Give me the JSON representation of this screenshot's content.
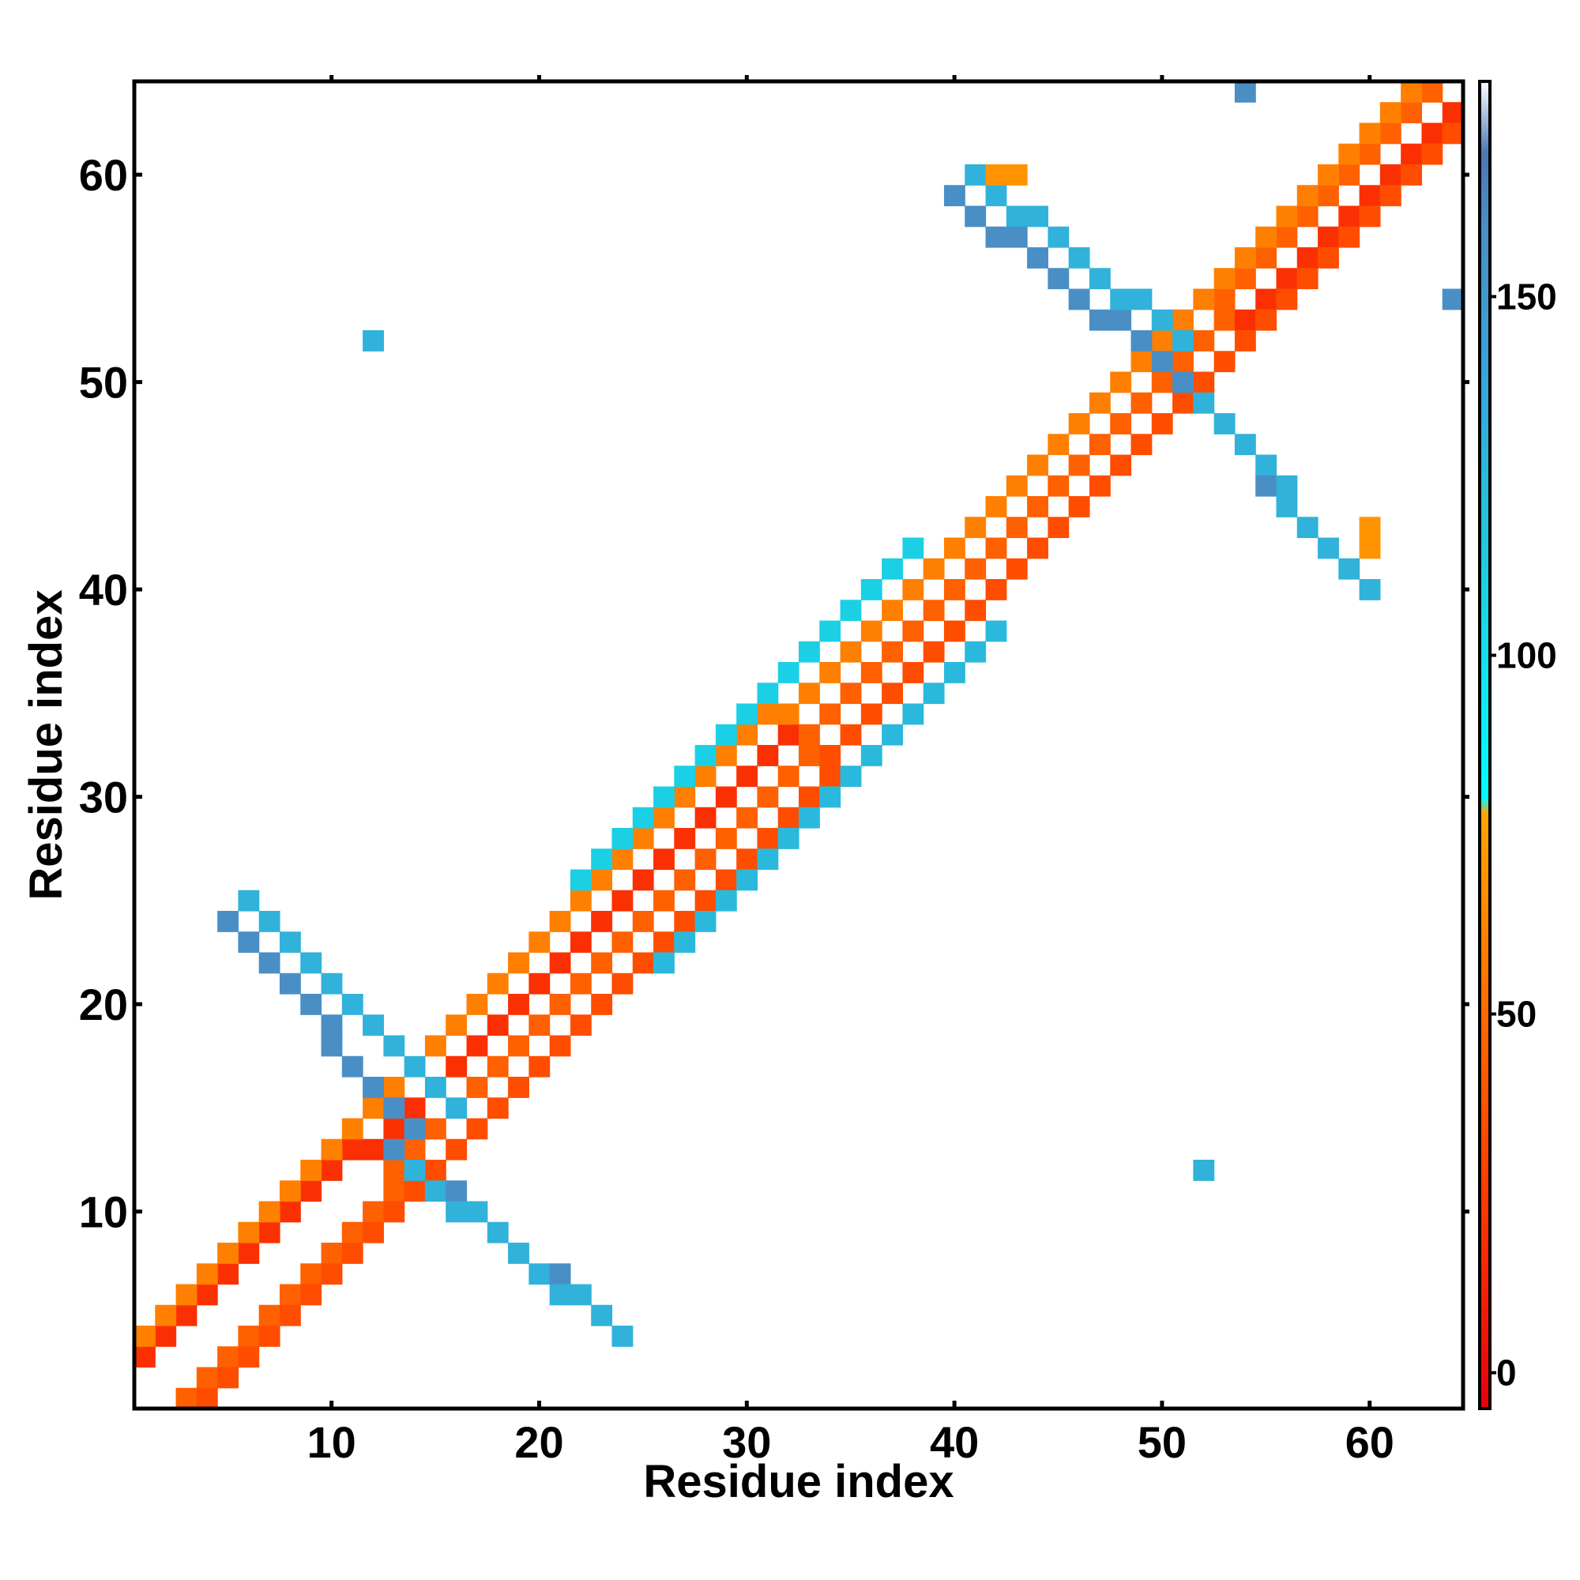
{
  "chart_data": {
    "type": "heatmap",
    "title": "",
    "xlabel": "Residue index",
    "ylabel": "Residue index",
    "xlim": [
      0.5,
      64.5
    ],
    "ylim": [
      0.5,
      64.5
    ],
    "x_ticks": [
      10,
      20,
      30,
      40,
      50,
      60
    ],
    "y_ticks": [
      10,
      20,
      30,
      40,
      50,
      60
    ],
    "x_tick_labels": [
      "10",
      "20",
      "30",
      "40",
      "50",
      "60"
    ],
    "y_tick_labels": [
      "10",
      "20",
      "30",
      "40",
      "50",
      "60"
    ],
    "grid": false,
    "colorbar": {
      "range": [
        -5,
        180
      ],
      "ticks": [
        0,
        50,
        100,
        150
      ],
      "tick_labels": [
        "0",
        "50",
        "100",
        "150"
      ],
      "placement": "right",
      "stops": [
        {
          "v": -5,
          "color": "#e8000b"
        },
        {
          "v": 25,
          "color": "#ff3a00"
        },
        {
          "v": 50,
          "color": "#ff6a00"
        },
        {
          "v": 78,
          "color": "#ffa500"
        },
        {
          "v": 80,
          "color": "#00ffff"
        },
        {
          "v": 115,
          "color": "#20c8e0"
        },
        {
          "v": 140,
          "color": "#3aa3d6"
        },
        {
          "v": 160,
          "color": "#4a8ec6"
        },
        {
          "v": 170,
          "color": "#4c77b5"
        },
        {
          "v": 180,
          "color": "#ffffff"
        }
      ]
    },
    "bands": [
      {
        "name": "diagonal-1",
        "from": [
          1,
          3
        ],
        "to": [
          64,
          63
        ],
        "value": 20
      },
      {
        "name": "diagonal+1",
        "from": [
          3,
          1
        ],
        "to": [
          63,
          64
        ],
        "value": 45
      },
      {
        "name": "diagonal-2",
        "from": [
          1,
          4
        ],
        "to": [
          62,
          64
        ],
        "value": 60
      },
      {
        "name": "diagonal+2",
        "from": [
          4,
          1
        ],
        "to": [
          64,
          62
        ],
        "value": 35
      },
      {
        "name": "helix-lower",
        "from": [
          22,
          26
        ],
        "to": [
          38,
          42
        ],
        "value": 110
      },
      {
        "name": "helix-upper",
        "from": [
          26,
          22
        ],
        "to": [
          42,
          38
        ],
        "value": 125
      },
      {
        "name": "antiparallel-A",
        "from": [
          5,
          24
        ],
        "to": [
          14,
          14
        ],
        "value": 160
      },
      {
        "name": "antiparallel-A-edge",
        "from": [
          6,
          25
        ],
        "to": [
          16,
          15
        ],
        "value": 130
      },
      {
        "name": "antiparallel-B",
        "from": [
          13,
          13
        ],
        "to": [
          23,
          5
        ],
        "value": 160
      },
      {
        "name": "antiparallel-B-edge",
        "from": [
          14,
          12
        ],
        "to": [
          24,
          4
        ],
        "value": 130
      },
      {
        "name": "antiparallel-C",
        "from": [
          40,
          59
        ],
        "to": [
          50,
          51
        ],
        "value": 160
      },
      {
        "name": "antiparallel-C-edge",
        "from": [
          41,
          60
        ],
        "to": [
          51,
          52
        ],
        "value": 130
      },
      {
        "name": "antiparallel-D",
        "from": [
          51,
          50
        ],
        "to": [
          59,
          41
        ],
        "value": 160
      },
      {
        "name": "antiparallel-D-edge",
        "from": [
          52,
          49
        ],
        "to": [
          60,
          40
        ],
        "value": 130
      }
    ],
    "extra_cells": [
      {
        "x": 12,
        "y": 52,
        "value": 130
      },
      {
        "x": 52,
        "y": 12,
        "value": 130
      },
      {
        "x": 54,
        "y": 64,
        "value": 160
      },
      {
        "x": 64,
        "y": 54,
        "value": 160
      },
      {
        "x": 42,
        "y": 60,
        "value": 70
      },
      {
        "x": 43,
        "y": 60,
        "value": 70
      },
      {
        "x": 60,
        "y": 42,
        "value": 70
      },
      {
        "x": 60,
        "y": 43,
        "value": 70
      }
    ]
  }
}
